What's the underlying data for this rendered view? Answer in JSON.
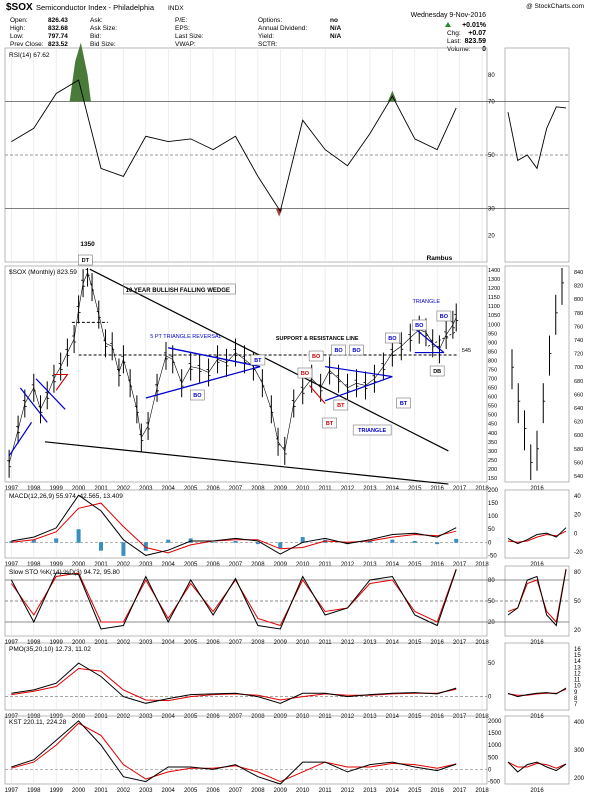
{
  "header": {
    "title_symbol": "$SOX",
    "title_name": "Semiconductor Index - Philadelphia",
    "title_exchange": "INDX",
    "watermark": "@ StockCharts.com",
    "col1": [
      [
        "Open:",
        "826.43"
      ],
      [
        "High:",
        "832.68"
      ],
      [
        "Low:",
        "797.74"
      ],
      [
        "Prev Close:",
        "823.52"
      ]
    ],
    "col2": [
      [
        "Ask:",
        ""
      ],
      [
        "Ask Size:",
        ""
      ],
      [
        "Bid:",
        ""
      ],
      [
        "Bid Size:",
        ""
      ]
    ],
    "col3": [
      [
        "P/E:",
        ""
      ],
      [
        "EPS:",
        ""
      ],
      [
        "Last Size:",
        ""
      ],
      [
        "VWAP:",
        ""
      ]
    ],
    "col4": [
      [
        "Options:",
        "no"
      ],
      [
        "Annual Dividend:",
        "N/A"
      ],
      [
        "Yield:",
        "N/A"
      ],
      [
        "SCTR:",
        ""
      ]
    ],
    "date": "Wednesday 9-Nov-2016",
    "col5": [
      [
        "",
        "+0.01%"
      ],
      [
        "Chg:",
        "+0.07"
      ],
      [
        "Last:",
        "823.59"
      ],
      [
        "Volume:",
        "0"
      ]
    ]
  },
  "colors": {
    "price_bar": "#000000",
    "support_line": "#000000",
    "pattern_blue": "#0000cc",
    "pattern_red": "#cc0000",
    "signal_red": "#e00000",
    "macd_hist": "#3a8fc0",
    "rsi_fill_high": "#4a7a3a",
    "rsi_fill_low": "#a04040",
    "grid": "#e3e3e3"
  },
  "chart_data": [
    {
      "type": "line",
      "panel": "rsi",
      "label": "RSI(14) 67.62",
      "ylim": [
        10,
        90
      ],
      "ticks": [
        "80",
        "70",
        "50",
        "30",
        "20"
      ],
      "x": [
        1997,
        1998,
        1999,
        2000,
        2001,
        2002,
        2003,
        2004,
        2005,
        2006,
        2007,
        2008,
        2009,
        2010,
        2011,
        2012,
        2013,
        2014,
        2015,
        2016,
        2016.85
      ],
      "values": [
        55,
        60,
        73,
        78,
        45,
        42,
        57,
        55,
        56,
        52,
        57,
        42,
        29,
        63,
        52,
        46,
        58,
        72,
        56,
        52,
        67.62
      ],
      "zoom_values": [
        66,
        48,
        50,
        45,
        60,
        68,
        67.62
      ]
    },
    {
      "type": "line",
      "panel": "price",
      "label": "$SOX (Monthly) 823.59",
      "scale": "log",
      "ylim": [
        135,
        1450
      ],
      "right_ticks": [
        "1400",
        "1300",
        "1200",
        "1150",
        "1100",
        "1050",
        "1000",
        "950",
        "900",
        "850",
        "800",
        "750",
        "700",
        "650",
        "600",
        "550",
        "500",
        "450",
        "400",
        "350",
        "300",
        "250",
        "200",
        "150"
      ],
      "x_ticks": [
        "1997",
        "1998",
        "1999",
        "2000",
        "2001",
        "2002",
        "2003",
        "2004",
        "2005",
        "2006",
        "2007",
        "2008",
        "2009",
        "2010",
        "2011",
        "2012",
        "2013",
        "2014",
        "2015",
        "2016",
        "2017",
        "2018"
      ],
      "x": [
        1996.9,
        1997.3,
        1997.6,
        1998.0,
        1998.3,
        1998.6,
        1998.9,
        1999.2,
        1999.5,
        1999.8,
        2000.0,
        2000.2,
        2000.4,
        2000.6,
        2000.9,
        2001.2,
        2001.5,
        2001.8,
        2002.0,
        2002.3,
        2002.6,
        2002.8,
        2003.1,
        2003.5,
        2003.9,
        2004.2,
        2004.6,
        2005.0,
        2005.4,
        2005.8,
        2006.2,
        2006.6,
        2007.0,
        2007.4,
        2007.8,
        2008.2,
        2008.6,
        2008.9,
        2009.2,
        2009.6,
        2010.0,
        2010.4,
        2010.8,
        2011.2,
        2011.6,
        2012.0,
        2012.4,
        2012.8,
        2013.2,
        2013.6,
        2014.0,
        2014.4,
        2014.8,
        2015.2,
        2015.5,
        2015.8,
        2016.1,
        2016.4,
        2016.7,
        2016.85
      ],
      "values": [
        165,
        240,
        320,
        380,
        300,
        350,
        420,
        480,
        560,
        650,
        900,
        1200,
        1350,
        1150,
        850,
        620,
        600,
        450,
        520,
        400,
        300,
        220,
        250,
        380,
        540,
        520,
        400,
        480,
        470,
        450,
        520,
        500,
        560,
        520,
        480,
        400,
        300,
        210,
        190,
        320,
        370,
        420,
        380,
        460,
        420,
        380,
        400,
        390,
        420,
        480,
        560,
        600,
        660,
        720,
        700,
        620,
        580,
        680,
        760,
        823.59
      ],
      "zoom_values": [
        700,
        650,
        610,
        560,
        580,
        650,
        720,
        780,
        824
      ],
      "annotations": [
        "1350",
        "DT",
        "10 YEAR BULLISH FALLING WEDGE",
        "5 PT TRIANGLE REVERSAL",
        "SUPPORT & RESISTANCE LINE",
        "TRIANGLE",
        "TRIANGLE",
        "BO",
        "BO",
        "BO",
        "BO",
        "BO",
        "BO",
        "BO",
        "BO",
        "BT",
        "BT",
        "BT",
        "BT",
        "DB",
        "545",
        "Rambus"
      ],
      "zoom_ticks": [
        "840",
        "820",
        "800",
        "780",
        "760",
        "740",
        "720",
        "700",
        "680",
        "660",
        "640",
        "620",
        "600",
        "580",
        "560",
        "540"
      ],
      "zoom_x_label": "2016"
    },
    {
      "type": "line",
      "panel": "macd",
      "label": "MACD(12,26,9) 55.974, 42.565, 13.409",
      "ylim": [
        -60,
        200
      ],
      "ticks": [
        "200",
        "150",
        "100",
        "50",
        "0",
        "-50"
      ],
      "series": [
        {
          "name": "MACD",
          "values": [
            5,
            20,
            55,
            180,
            120,
            10,
            -50,
            -30,
            5,
            5,
            15,
            5,
            -45,
            0,
            15,
            -5,
            10,
            30,
            35,
            20,
            55.974
          ]
        },
        {
          "name": "Signal",
          "values": [
            0,
            10,
            40,
            130,
            150,
            60,
            -20,
            -40,
            -10,
            5,
            10,
            10,
            -25,
            -20,
            5,
            0,
            5,
            20,
            30,
            25,
            42.565
          ]
        }
      ],
      "x": [
        1997,
        1998,
        1999,
        2000,
        2001,
        2002,
        2003,
        2004,
        2005,
        2006,
        2007,
        2008,
        2009,
        2010,
        2011,
        2012,
        2013,
        2014,
        2015,
        2016,
        2016.85
      ],
      "zoom_ticks": [
        "40",
        "20",
        "0",
        "-20"
      ]
    },
    {
      "type": "line",
      "panel": "sto",
      "label": "Slow STO %K(14) %D(3) 94.72, 95.80",
      "ylim": [
        0,
        100
      ],
      "ticks": [
        "80",
        "50",
        "20"
      ],
      "series": [
        {
          "name": "%K",
          "values": [
            80,
            20,
            90,
            88,
            10,
            15,
            85,
            20,
            80,
            30,
            82,
            15,
            10,
            85,
            30,
            40,
            80,
            85,
            30,
            15,
            94.72
          ]
        },
        {
          "name": "%D",
          "values": [
            75,
            30,
            85,
            90,
            20,
            20,
            80,
            25,
            75,
            35,
            80,
            25,
            15,
            80,
            35,
            40,
            75,
            80,
            35,
            20,
            95.8
          ]
        }
      ],
      "x": [
        1997,
        1998,
        1999,
        2000,
        2001,
        2002,
        2003,
        2004,
        2005,
        2006,
        2007,
        2008,
        2009,
        2010,
        2011,
        2012,
        2013,
        2014,
        2015,
        2016,
        2016.85
      ],
      "zoom_ticks": [
        "80",
        "50",
        "20"
      ]
    },
    {
      "type": "line",
      "panel": "pmo",
      "label": "PMO(35,20,10) 12.73, 11.02",
      "ylim": [
        -20,
        80
      ],
      "ticks": [
        "50",
        "0"
      ],
      "series": [
        {
          "name": "PMO",
          "values": [
            5,
            10,
            20,
            50,
            30,
            0,
            -10,
            -3,
            3,
            4,
            5,
            0,
            -10,
            5,
            5,
            0,
            3,
            5,
            6,
            4,
            12.73
          ]
        },
        {
          "name": "Signal",
          "values": [
            3,
            8,
            15,
            42,
            38,
            10,
            -5,
            -6,
            0,
            3,
            4,
            2,
            -5,
            0,
            4,
            2,
            2,
            4,
            5,
            5,
            11.02
          ]
        }
      ],
      "x": [
        1997,
        1998,
        1999,
        2000,
        2001,
        2002,
        2003,
        2004,
        2005,
        2006,
        2007,
        2008,
        2009,
        2010,
        2011,
        2012,
        2013,
        2014,
        2015,
        2016,
        2016.85
      ],
      "zoom_ticks": [
        "16",
        "15",
        "14",
        "13",
        "12",
        "11",
        "10",
        "9",
        "8",
        "7"
      ]
    },
    {
      "type": "line",
      "panel": "kst",
      "label": "KST 220.11, 224.28",
      "ylim": [
        -600,
        2200
      ],
      "ticks": [
        "2000",
        "1500",
        "1000",
        "500",
        "0",
        "-500"
      ],
      "series": [
        {
          "name": "KST",
          "values": [
            100,
            400,
            1200,
            2000,
            1000,
            -300,
            -500,
            100,
            100,
            0,
            200,
            -300,
            -600,
            300,
            300,
            -100,
            200,
            300,
            100,
            -50,
            220.11
          ]
        },
        {
          "name": "Signal",
          "values": [
            50,
            300,
            1000,
            1900,
            1400,
            200,
            -400,
            -100,
            50,
            50,
            150,
            -100,
            -500,
            -100,
            300,
            100,
            100,
            250,
            200,
            50,
            224.28
          ]
        }
      ],
      "x": [
        1997,
        1998,
        1999,
        2000,
        2001,
        2002,
        2003,
        2004,
        2005,
        2006,
        2007,
        2008,
        2009,
        2010,
        2011,
        2012,
        2013,
        2014,
        2015,
        2016,
        2016.85
      ],
      "zoom_ticks": [
        "400",
        "300",
        "200"
      ]
    }
  ]
}
